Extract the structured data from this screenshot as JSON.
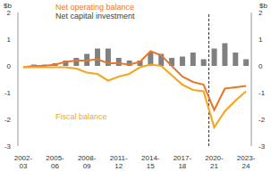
{
  "chart_data": {
    "type": "bar",
    "ylabel": "$b",
    "y2label": "$b",
    "categories": [
      "2002-03",
      null,
      null,
      "2005-06",
      null,
      null,
      "2008-09",
      null,
      null,
      "2011-12",
      null,
      null,
      "2014-15",
      null,
      null,
      "2017-18",
      null,
      null,
      "2020-21",
      null,
      null,
      "2023-24"
    ],
    "ylim": [
      -3,
      2
    ],
    "yticks": [
      -3,
      -2,
      -1,
      0,
      1,
      2
    ],
    "y2lim": [
      -3,
      2
    ],
    "y2ticks": [
      -3,
      -2,
      -1,
      0,
      1,
      2
    ],
    "series": [
      {
        "name": "Net operating balance",
        "type": "line",
        "color": "#E8772E",
        "values": [
          -0.05,
          0.0,
          0.0,
          0.05,
          0.15,
          0.2,
          0.2,
          0.25,
          0.1,
          0.1,
          0.05,
          0.15,
          0.55,
          0.4,
          0.0,
          -0.4,
          -0.6,
          -0.7,
          -1.65,
          -0.85,
          -0.8,
          -0.75
        ]
      },
      {
        "name": "Net capital investment",
        "type": "bar",
        "color": "#808080",
        "values": [
          0.0,
          0.05,
          0.05,
          0.1,
          0.2,
          0.3,
          0.45,
          0.65,
          0.65,
          0.3,
          0.2,
          0.2,
          0.5,
          0.45,
          0.3,
          0.35,
          0.5,
          0.25,
          0.65,
          0.85,
          0.5,
          0.25
        ]
      },
      {
        "name": "Fiscal balance",
        "type": "line",
        "color": "#F5A623",
        "values": [
          -0.05,
          -0.05,
          -0.05,
          -0.05,
          -0.05,
          -0.1,
          -0.25,
          -0.3,
          -0.55,
          -0.4,
          -0.3,
          -0.05,
          0.05,
          0.0,
          -0.35,
          -0.7,
          -0.9,
          -0.95,
          -2.3,
          -1.7,
          -1.3,
          -0.95
        ]
      }
    ]
  }
}
